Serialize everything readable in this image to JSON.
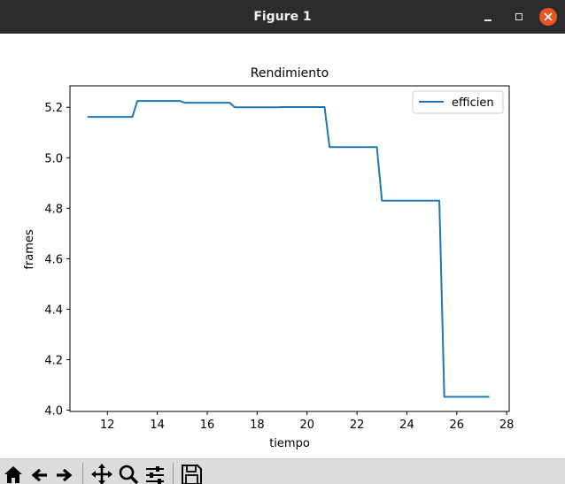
{
  "window": {
    "title": "Figure 1",
    "close_color": "#e95420"
  },
  "toolbar": {
    "buttons": [
      {
        "name": "home-icon"
      },
      {
        "name": "back-arrow-icon"
      },
      {
        "name": "forward-arrow-icon"
      },
      {
        "name": "pan-icon"
      },
      {
        "name": "zoom-icon"
      },
      {
        "name": "configure-subplots-icon"
      },
      {
        "name": "save-icon"
      }
    ]
  },
  "chart_data": {
    "type": "line",
    "title": "Rendimiento",
    "xlabel": "tiempo",
    "ylabel": "frames",
    "xlim": [
      10.5,
      28.1
    ],
    "ylim": [
      3.995,
      5.285
    ],
    "xticks": [
      12,
      14,
      16,
      18,
      20,
      22,
      24,
      26,
      28
    ],
    "yticks": [
      4.0,
      4.2,
      4.4,
      4.6,
      4.8,
      5.0,
      5.2
    ],
    "ytick_labels": [
      "4.0",
      "4.2",
      "4.4",
      "4.6",
      "4.8",
      "5.0",
      "5.2"
    ],
    "grid": false,
    "legend_position": "top-right",
    "series": [
      {
        "name": "efficien",
        "color": "#1f77b4",
        "x": [
          11.2,
          13.0,
          13.2,
          14.9,
          15.1,
          16.9,
          17.1,
          18.8,
          19.0,
          20.7,
          20.9,
          22.8,
          23.0,
          25.3,
          25.5,
          27.3
        ],
        "y": [
          5.162,
          5.162,
          5.225,
          5.225,
          5.218,
          5.218,
          5.2,
          5.2,
          5.201,
          5.201,
          5.042,
          5.042,
          4.83,
          4.83,
          4.053,
          4.053
        ]
      }
    ]
  }
}
